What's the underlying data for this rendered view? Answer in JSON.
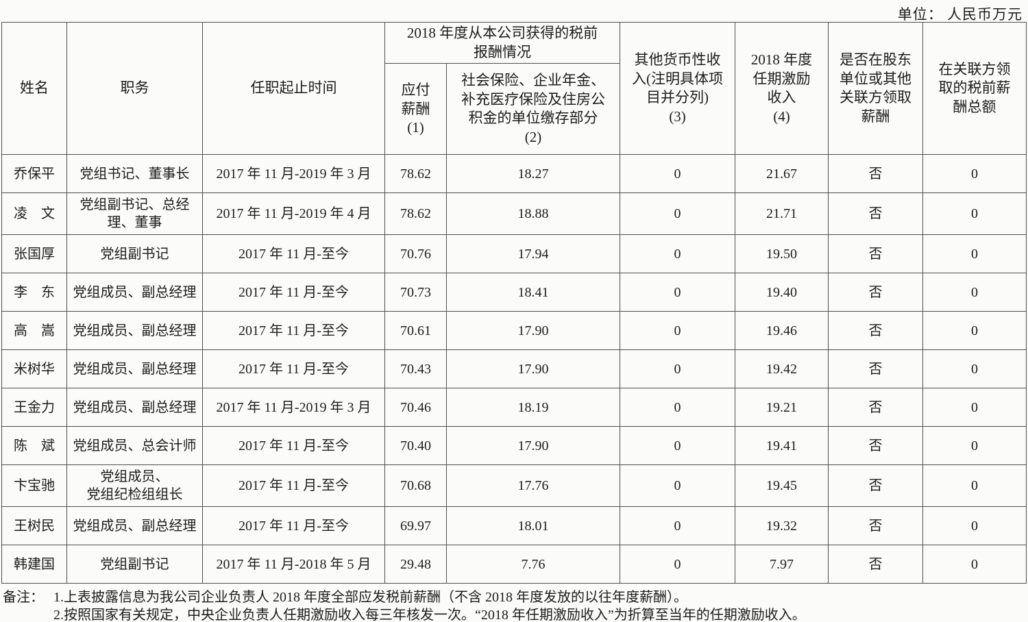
{
  "unit_label": "单位： 人民币万元",
  "table": {
    "header": {
      "name": "姓名",
      "position": "职务",
      "term": "任职起止时间",
      "comp_group": "2018 年度从本公司获得的税前\n报酬情况",
      "payable": "应付\n薪酬\n(1)",
      "social": "社会保险、企业年金、\n补充医疗保险及住房公\n积金的单位缴存部分\n(2)",
      "other_income": "其他货币性收\n入(注明具体项\n目并分列)\n(3)",
      "tenure_incentive": "2018 年度\n任期激励\n收入\n(4)",
      "related_party_flag": "是否在股东\n单位或其他\n关联方领取\n薪酬",
      "related_party_total": "在关联方领\n取的税前薪\n酬总额"
    },
    "rows": [
      {
        "name": "乔保平",
        "position": "党组书记、董事长",
        "term": "2017 年 11 月-2019 年 3 月",
        "payable": "78.62",
        "social": "18.27",
        "other_income": "0",
        "tenure_incentive": "21.67",
        "related_party_flag": "否",
        "related_party_total": "0"
      },
      {
        "name": "凌　文",
        "position": "党组副书记、总经\n理、董事",
        "term": "2017 年 11 月-2019 年 4 月",
        "payable": "78.62",
        "social": "18.88",
        "other_income": "0",
        "tenure_incentive": "21.71",
        "related_party_flag": "否",
        "related_party_total": "0"
      },
      {
        "name": "张国厚",
        "position": "党组副书记",
        "term": "2017 年 11 月-至今",
        "payable": "70.76",
        "social": "17.94",
        "other_income": "0",
        "tenure_incentive": "19.50",
        "related_party_flag": "否",
        "related_party_total": "0"
      },
      {
        "name": "李　东",
        "position": "党组成员、副总经理",
        "term": "2017 年 11 月-至今",
        "payable": "70.73",
        "social": "18.41",
        "other_income": "0",
        "tenure_incentive": "19.40",
        "related_party_flag": "否",
        "related_party_total": "0"
      },
      {
        "name": "高　嵩",
        "position": "党组成员、副总经理",
        "term": "2017 年 11 月-至今",
        "payable": "70.61",
        "social": "17.90",
        "other_income": "0",
        "tenure_incentive": "19.46",
        "related_party_flag": "否",
        "related_party_total": "0"
      },
      {
        "name": "米树华",
        "position": "党组成员、副总经理",
        "term": "2017 年 11 月-至今",
        "payable": "70.43",
        "social": "17.90",
        "other_income": "0",
        "tenure_incentive": "19.42",
        "related_party_flag": "否",
        "related_party_total": "0"
      },
      {
        "name": "王金力",
        "position": "党组成员、副总经理",
        "term": "2017 年 11 月-2019 年 3 月",
        "payable": "70.46",
        "social": "18.19",
        "other_income": "0",
        "tenure_incentive": "19.21",
        "related_party_flag": "否",
        "related_party_total": "0"
      },
      {
        "name": "陈　斌",
        "position": "党组成员、总会计师",
        "term": "2017 年 11 月-至今",
        "payable": "70.40",
        "social": "17.90",
        "other_income": "0",
        "tenure_incentive": "19.41",
        "related_party_flag": "否",
        "related_party_total": "0"
      },
      {
        "name": "卞宝驰",
        "position": "党组成员、\n党组纪检组组长",
        "term": "2017 年 11 月-至今",
        "payable": "70.68",
        "social": "17.76",
        "other_income": "0",
        "tenure_incentive": "19.45",
        "related_party_flag": "否",
        "related_party_total": "0"
      },
      {
        "name": "王树民",
        "position": "党组成员、副总经理",
        "term": "2017 年 11 月-至今",
        "payable": "69.97",
        "social": "18.01",
        "other_income": "0",
        "tenure_incentive": "19.32",
        "related_party_flag": "否",
        "related_party_total": "0"
      },
      {
        "name": "韩建国",
        "position": "党组副书记",
        "term": "2017 年 11 月-2018 年 5 月",
        "payable": "29.48",
        "social": "7.76",
        "other_income": "0",
        "tenure_incentive": "7.97",
        "related_party_flag": "否",
        "related_party_total": "0"
      }
    ]
  },
  "notes": {
    "label": "备注：",
    "items": [
      "1.上表披露信息为我公司企业负责人 2018 年度全部应发税前薪酬（不含 2018 年度发放的以往年度薪酬）。",
      "2.按照国家有关规定，中央企业负责人任期激励收入每三年核发一次。“2018 年任期激励收入”为折算至当年的任期激励收入。"
    ]
  }
}
